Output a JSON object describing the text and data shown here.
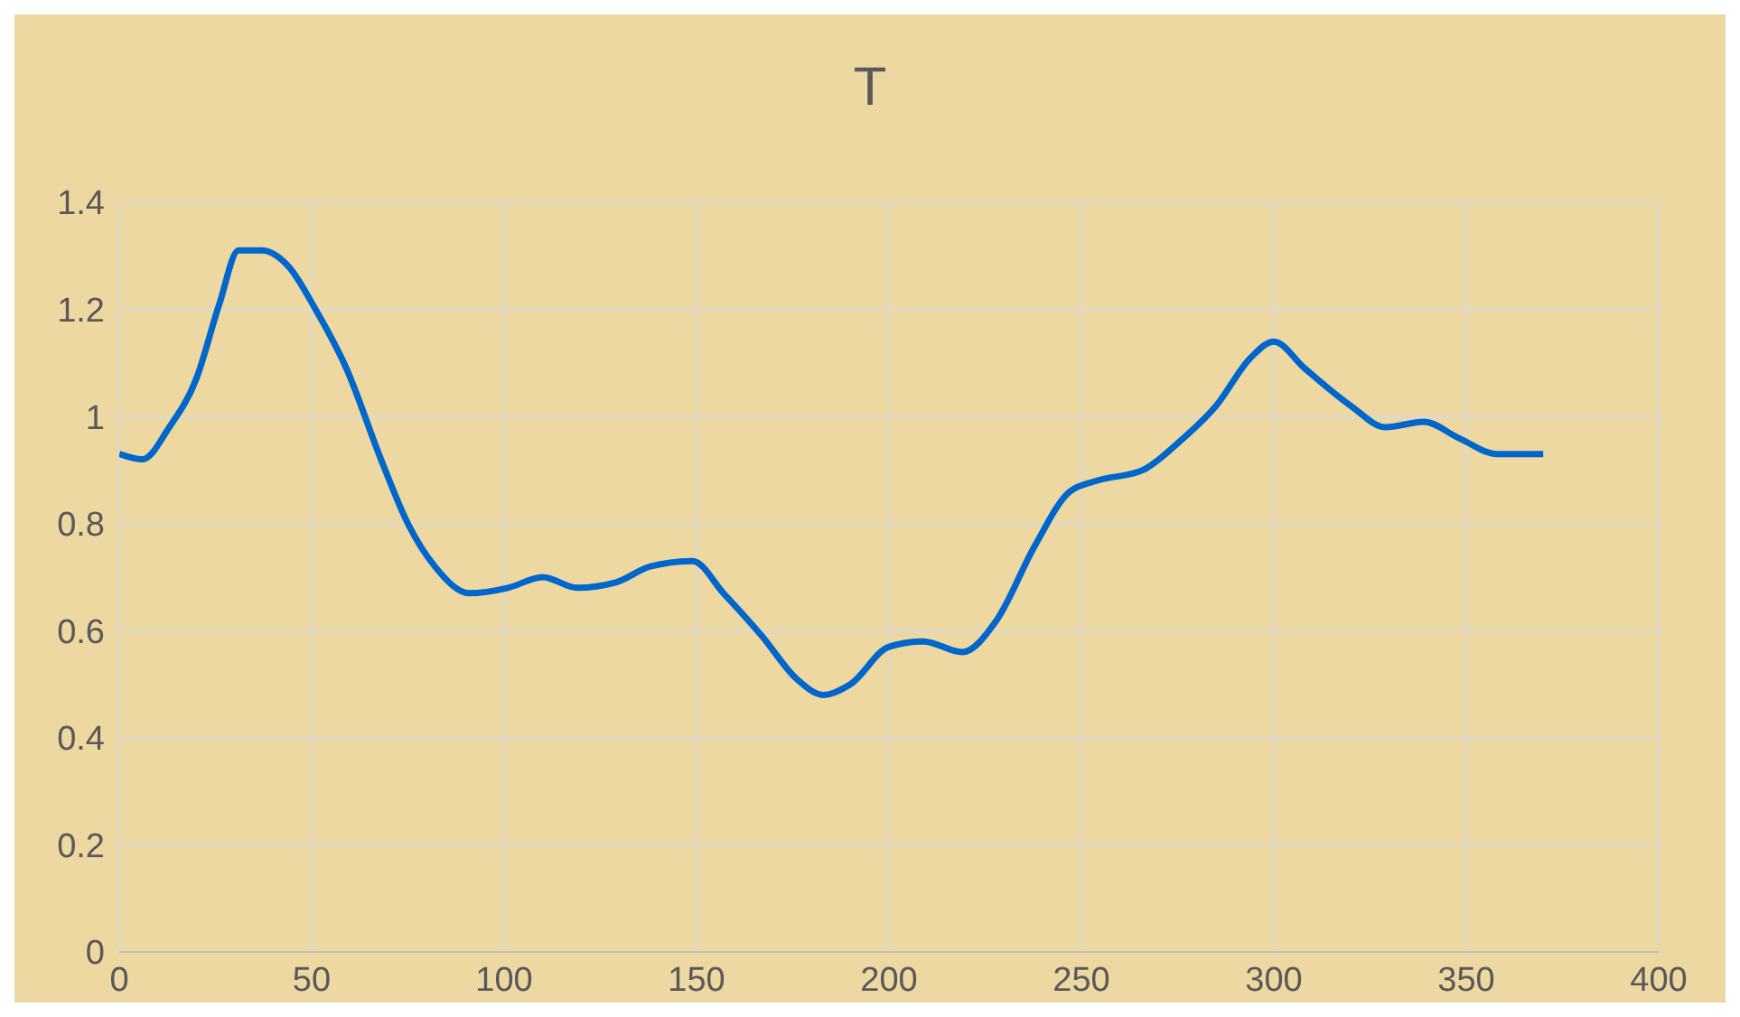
{
  "chart_data": {
    "type": "line",
    "title": "T",
    "x": [
      0,
      6,
      13,
      20,
      26,
      31,
      37,
      44,
      51,
      59,
      68,
      75,
      82,
      91,
      101,
      110,
      119,
      129,
      138,
      149,
      157,
      167,
      176,
      183,
      190,
      200,
      209,
      219,
      228,
      238,
      247,
      254,
      266,
      275,
      285,
      294,
      300,
      308,
      320,
      329,
      339,
      348,
      358,
      370
    ],
    "series": [
      {
        "color": "#0066cc",
        "values": [
          0.93,
          0.92,
          0.98,
          1.07,
          1.21,
          1.31,
          1.31,
          1.28,
          1.2,
          1.09,
          0.92,
          0.8,
          0.72,
          0.67,
          0.68,
          0.7,
          0.68,
          0.69,
          0.72,
          0.73,
          0.67,
          0.59,
          0.51,
          0.48,
          0.5,
          0.57,
          0.58,
          0.56,
          0.62,
          0.76,
          0.86,
          0.88,
          0.9,
          0.95,
          1.02,
          1.11,
          1.14,
          1.09,
          1.02,
          0.98,
          0.99,
          0.96,
          0.93,
          0.93
        ]
      }
    ],
    "xlim": [
      0,
      400
    ],
    "xticks": [
      0,
      50,
      100,
      150,
      200,
      250,
      300,
      350,
      400
    ],
    "ylim": [
      0,
      1.4
    ],
    "yticks": [
      0,
      0.2,
      0.4,
      0.6,
      0.8,
      1,
      1.2,
      1.4
    ],
    "grid": true,
    "legend": false,
    "marker": "none",
    "line_style": "solid"
  }
}
